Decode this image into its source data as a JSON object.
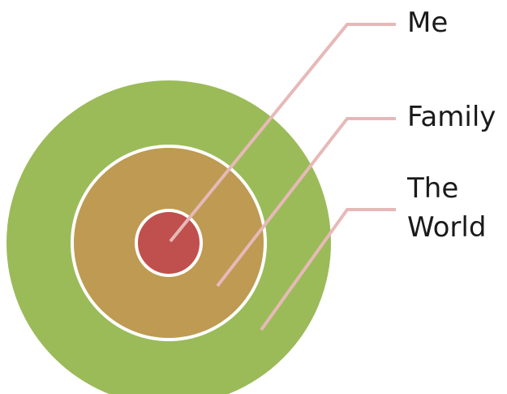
{
  "labels": {
    "me": "Me",
    "family": "Family",
    "world_line1": "The",
    "world_line2": "World"
  },
  "colors": {
    "outer_ring": "#9BBB59",
    "middle_ring": "#BE9A52",
    "inner_circle": "#C0504D",
    "ring_border": "#ffffff",
    "connector": "#E6B9B8",
    "text": "#1a1a1a"
  }
}
